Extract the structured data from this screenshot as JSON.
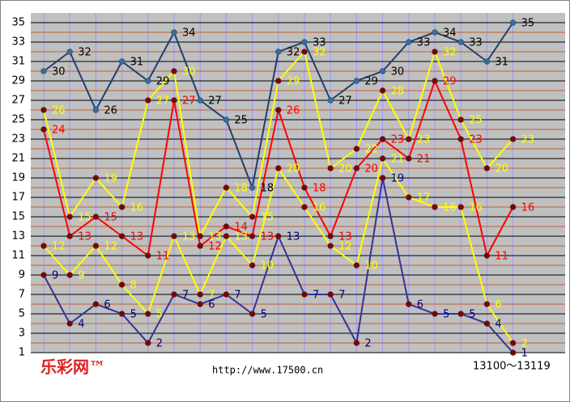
{
  "chart_data": {
    "type": "line",
    "ylim": [
      1,
      36
    ],
    "yticks": [
      1,
      3,
      5,
      7,
      9,
      11,
      13,
      15,
      17,
      19,
      21,
      23,
      25,
      27,
      29,
      31,
      33,
      35
    ],
    "minor_yticks": [
      2,
      4,
      6,
      8,
      10,
      12,
      14,
      16,
      18,
      20,
      22,
      24,
      26,
      28,
      30,
      32,
      34
    ],
    "grid": true,
    "series": [
      {
        "color": "#1f3f6f",
        "marker_color": "#2f6f9f",
        "label_color": "#000000",
        "values": [
          30,
          32,
          26,
          31,
          29,
          34,
          27,
          25,
          18,
          32,
          33,
          27,
          29,
          30,
          33,
          34,
          33,
          31,
          35
        ]
      },
      {
        "color": "#ffff00",
        "marker_color": "#800000",
        "label_color": "#ffff00",
        "values": [
          26,
          15,
          19,
          16,
          27,
          30,
          13,
          18,
          15,
          29,
          32,
          20,
          22,
          28,
          23,
          32,
          25,
          20,
          23
        ]
      },
      {
        "color": "#ff0000",
        "marker_color": "#800000",
        "label_color": "#ff0000",
        "values": [
          24,
          13,
          15,
          13,
          11,
          27,
          12,
          14,
          13,
          26,
          18,
          13,
          20,
          23,
          21,
          29,
          23,
          11,
          16
        ]
      },
      {
        "color": "#ffff00",
        "marker_color": "#800000",
        "label_color": "#ffff00",
        "values": [
          12,
          9,
          12,
          8,
          5,
          13,
          7,
          13,
          10,
          20,
          16,
          12,
          10,
          21,
          17,
          16,
          16,
          6,
          2
        ]
      },
      {
        "color": "#333399",
        "marker_color": "#800000",
        "label_color": "#000080",
        "values": [
          9,
          4,
          6,
          5,
          2,
          7,
          6,
          7,
          5,
          13,
          7,
          7,
          2,
          19,
          6,
          5,
          5,
          4,
          1
        ]
      }
    ],
    "logo": "乐彩网™",
    "url": "http://www.17500.cn",
    "range_label": "13100～13119"
  }
}
